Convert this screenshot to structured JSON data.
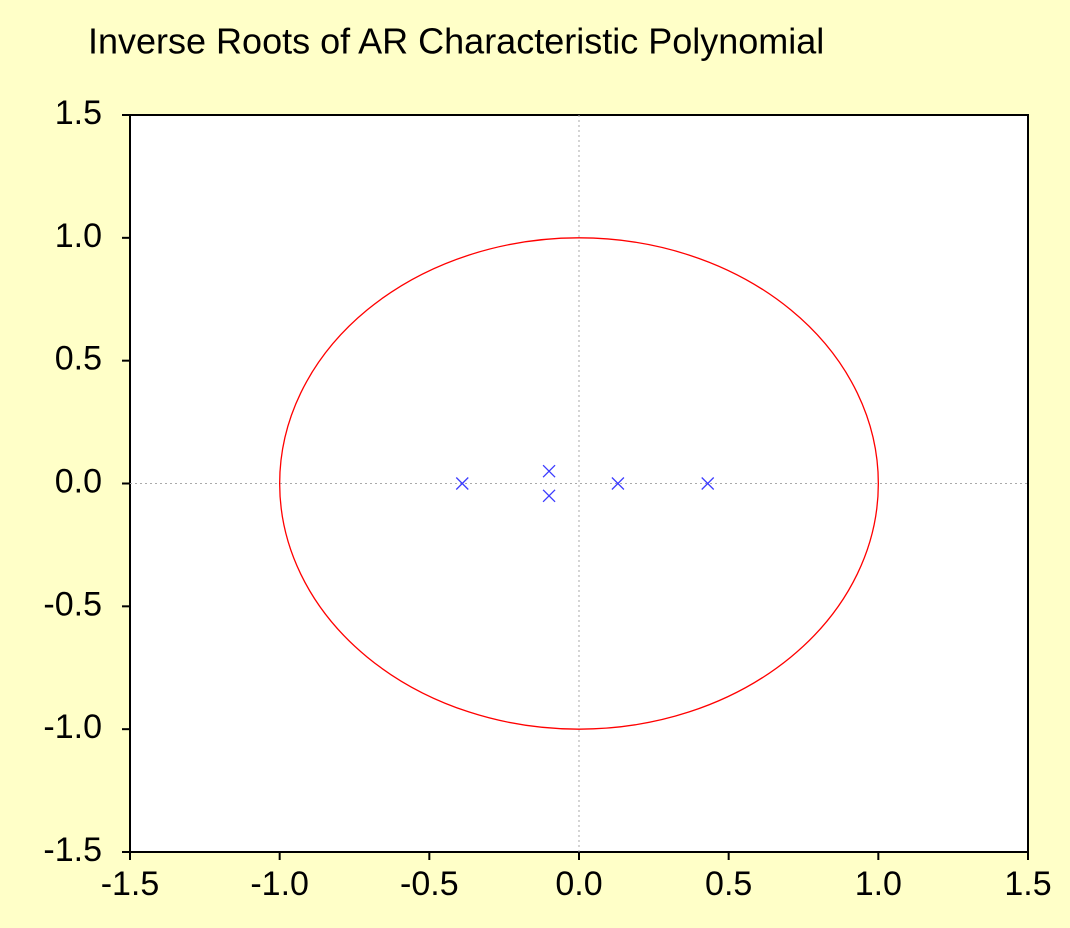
{
  "chart_data": {
    "type": "scatter",
    "title": "Inverse Roots of AR Characteristic Polynomial",
    "x": [
      -0.39,
      -0.1,
      -0.1,
      0.13,
      0.43
    ],
    "y": [
      0,
      0.05,
      -0.05,
      0,
      0
    ],
    "color": "#3c3cff",
    "unit_circle_color": "#ff0000",
    "unit_circle": true,
    "zero_lines": true,
    "xlim": [
      -1.5,
      1.5
    ],
    "ylim": [
      -1.5,
      1.5
    ],
    "xticks": [
      -1.5,
      {
        "value": -1,
        "label": "-1.0"
      },
      -0.5,
      {
        "value": 0,
        "label": "0.0"
      },
      0.5,
      {
        "value": 1,
        "label": "1.0"
      },
      1.5
    ],
    "yticks": [
      -1.5,
      {
        "value": -1,
        "label": "-1.0"
      },
      -0.5,
      {
        "value": 0,
        "label": "0.0"
      },
      0.5,
      {
        "value": 1,
        "label": "1.0"
      },
      1.5
    ]
  }
}
